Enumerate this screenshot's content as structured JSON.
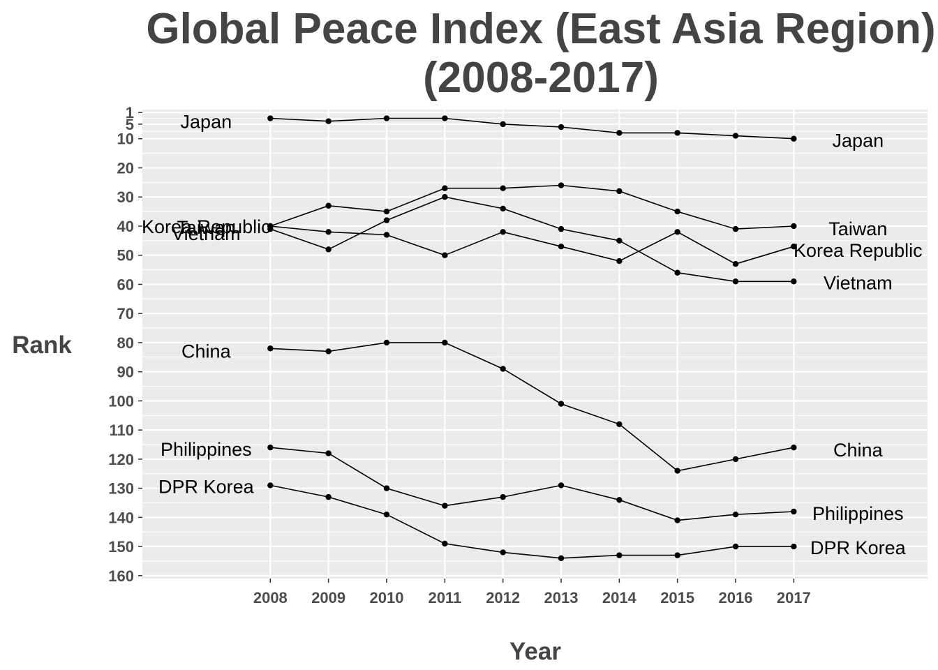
{
  "chart_data": {
    "type": "line",
    "title": "Global Peace Index (East Asia Region)",
    "subtitle": "(2008-2017)",
    "xlabel": "Year",
    "ylabel": "Rank",
    "x": [
      2008,
      2009,
      2010,
      2011,
      2012,
      2013,
      2014,
      2015,
      2016,
      2017
    ],
    "x_tick_labels": [
      "2008",
      "2009",
      "2010",
      "2011",
      "2012",
      "2013",
      "2014",
      "2015",
      "2016",
      "2017"
    ],
    "xlim": [
      2005.8,
      2019.3
    ],
    "y_ticks": [
      1,
      5,
      10,
      20,
      30,
      40,
      50,
      60,
      70,
      80,
      90,
      100,
      110,
      120,
      130,
      140,
      150,
      160
    ],
    "y_tick_labels": [
      "1",
      "5",
      "10",
      "20",
      "30",
      "40",
      "50",
      "60",
      "70",
      "80",
      "90",
      "100",
      "110",
      "120",
      "130",
      "140",
      "150",
      "160"
    ],
    "ylim": [
      161,
      0
    ],
    "y_reversed": true,
    "grid": true,
    "legend": "none",
    "colors": {
      "panel": "#ebebeb",
      "grid": "#ffffff",
      "line": "#000000"
    },
    "series": [
      {
        "name": "Japan",
        "values": [
          3,
          4,
          3,
          3,
          5,
          6,
          8,
          8,
          9,
          10
        ]
      },
      {
        "name": "Taiwan",
        "values": [
          40,
          33,
          35,
          27,
          27,
          26,
          28,
          35,
          41,
          40
        ]
      },
      {
        "name": "Korea Republic",
        "values": [
          40,
          42,
          43,
          50,
          42,
          47,
          52,
          42,
          53,
          47
        ]
      },
      {
        "name": "Vietnam",
        "values": [
          41,
          48,
          38,
          30,
          34,
          41,
          45,
          56,
          59,
          59
        ]
      },
      {
        "name": "China",
        "values": [
          82,
          83,
          80,
          80,
          89,
          101,
          108,
          124,
          120,
          116
        ]
      },
      {
        "name": "Philippines",
        "values": [
          116,
          118,
          130,
          136,
          133,
          129,
          134,
          141,
          139,
          138
        ]
      },
      {
        "name": "DPR Korea",
        "values": [
          129,
          133,
          139,
          149,
          152,
          154,
          153,
          153,
          150,
          150
        ]
      }
    ]
  }
}
